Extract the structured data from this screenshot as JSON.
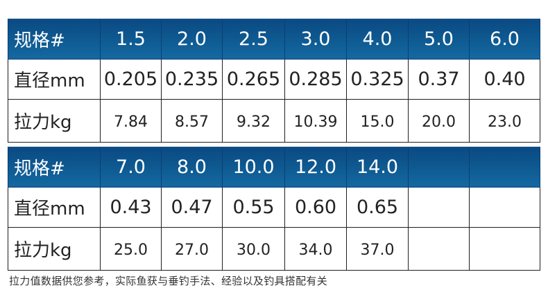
{
  "table1": {
    "header_label": "规格#",
    "diameter_label": "直径mm",
    "tension_label": "拉力kg",
    "specs": [
      "1.5",
      "2.0",
      "2.5",
      "3.0",
      "4.0",
      "5.0",
      "6.0"
    ],
    "diameters": [
      "0.205",
      "0.235",
      "0.265",
      "0.285",
      "0.325",
      "0.37",
      "0.40"
    ],
    "tensions": [
      "7.84",
      "8.57",
      "9.32",
      "10.39",
      "15.0",
      "20.0",
      "23.0"
    ]
  },
  "table2": {
    "header_label": "规格#",
    "diameter_label": "直径mm",
    "tension_label": "拉力kg",
    "specs": [
      "7.0",
      "8.0",
      "10.0",
      "12.0",
      "14.0",
      "",
      ""
    ],
    "diameters": [
      "0.43",
      "0.47",
      "0.55",
      "0.60",
      "0.65",
      "",
      ""
    ],
    "tensions": [
      "25.0",
      "27.0",
      "30.0",
      "34.0",
      "37.0",
      "",
      ""
    ]
  },
  "note": "拉力值数据供您参考，实际鱼获与垂钓手法、经验以及钓具搭配有关",
  "colors": {
    "header_bg": "#0e588f",
    "header_text": "#ffffff",
    "border": "#1e1e1e"
  }
}
